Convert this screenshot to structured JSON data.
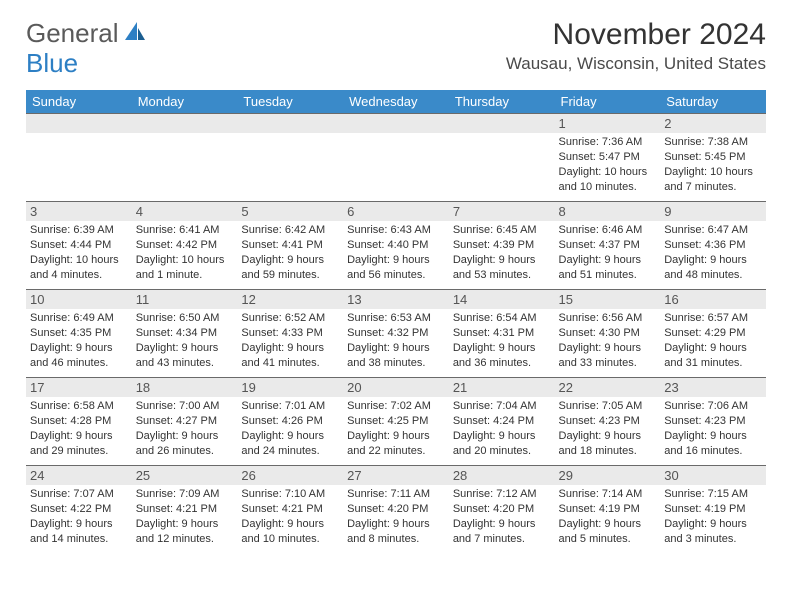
{
  "logo": {
    "word1": "General",
    "word2": "Blue"
  },
  "title": "November 2024",
  "location": "Wausau, Wisconsin, United States",
  "colors": {
    "header_bg": "#3a8ac9",
    "header_text": "#ffffff",
    "daynum_bg": "#eaeaea",
    "border": "#6a6a6a",
    "text": "#333333",
    "logo_gray": "#5a5a5a",
    "logo_blue": "#2d7fc4"
  },
  "day_headers": [
    "Sunday",
    "Monday",
    "Tuesday",
    "Wednesday",
    "Thursday",
    "Friday",
    "Saturday"
  ],
  "weeks": [
    [
      null,
      null,
      null,
      null,
      null,
      {
        "n": "1",
        "sunrise": "Sunrise: 7:36 AM",
        "sunset": "Sunset: 5:47 PM",
        "daylight": "Daylight: 10 hours and 10 minutes."
      },
      {
        "n": "2",
        "sunrise": "Sunrise: 7:38 AM",
        "sunset": "Sunset: 5:45 PM",
        "daylight": "Daylight: 10 hours and 7 minutes."
      }
    ],
    [
      {
        "n": "3",
        "sunrise": "Sunrise: 6:39 AM",
        "sunset": "Sunset: 4:44 PM",
        "daylight": "Daylight: 10 hours and 4 minutes."
      },
      {
        "n": "4",
        "sunrise": "Sunrise: 6:41 AM",
        "sunset": "Sunset: 4:42 PM",
        "daylight": "Daylight: 10 hours and 1 minute."
      },
      {
        "n": "5",
        "sunrise": "Sunrise: 6:42 AM",
        "sunset": "Sunset: 4:41 PM",
        "daylight": "Daylight: 9 hours and 59 minutes."
      },
      {
        "n": "6",
        "sunrise": "Sunrise: 6:43 AM",
        "sunset": "Sunset: 4:40 PM",
        "daylight": "Daylight: 9 hours and 56 minutes."
      },
      {
        "n": "7",
        "sunrise": "Sunrise: 6:45 AM",
        "sunset": "Sunset: 4:39 PM",
        "daylight": "Daylight: 9 hours and 53 minutes."
      },
      {
        "n": "8",
        "sunrise": "Sunrise: 6:46 AM",
        "sunset": "Sunset: 4:37 PM",
        "daylight": "Daylight: 9 hours and 51 minutes."
      },
      {
        "n": "9",
        "sunrise": "Sunrise: 6:47 AM",
        "sunset": "Sunset: 4:36 PM",
        "daylight": "Daylight: 9 hours and 48 minutes."
      }
    ],
    [
      {
        "n": "10",
        "sunrise": "Sunrise: 6:49 AM",
        "sunset": "Sunset: 4:35 PM",
        "daylight": "Daylight: 9 hours and 46 minutes."
      },
      {
        "n": "11",
        "sunrise": "Sunrise: 6:50 AM",
        "sunset": "Sunset: 4:34 PM",
        "daylight": "Daylight: 9 hours and 43 minutes."
      },
      {
        "n": "12",
        "sunrise": "Sunrise: 6:52 AM",
        "sunset": "Sunset: 4:33 PM",
        "daylight": "Daylight: 9 hours and 41 minutes."
      },
      {
        "n": "13",
        "sunrise": "Sunrise: 6:53 AM",
        "sunset": "Sunset: 4:32 PM",
        "daylight": "Daylight: 9 hours and 38 minutes."
      },
      {
        "n": "14",
        "sunrise": "Sunrise: 6:54 AM",
        "sunset": "Sunset: 4:31 PM",
        "daylight": "Daylight: 9 hours and 36 minutes."
      },
      {
        "n": "15",
        "sunrise": "Sunrise: 6:56 AM",
        "sunset": "Sunset: 4:30 PM",
        "daylight": "Daylight: 9 hours and 33 minutes."
      },
      {
        "n": "16",
        "sunrise": "Sunrise: 6:57 AM",
        "sunset": "Sunset: 4:29 PM",
        "daylight": "Daylight: 9 hours and 31 minutes."
      }
    ],
    [
      {
        "n": "17",
        "sunrise": "Sunrise: 6:58 AM",
        "sunset": "Sunset: 4:28 PM",
        "daylight": "Daylight: 9 hours and 29 minutes."
      },
      {
        "n": "18",
        "sunrise": "Sunrise: 7:00 AM",
        "sunset": "Sunset: 4:27 PM",
        "daylight": "Daylight: 9 hours and 26 minutes."
      },
      {
        "n": "19",
        "sunrise": "Sunrise: 7:01 AM",
        "sunset": "Sunset: 4:26 PM",
        "daylight": "Daylight: 9 hours and 24 minutes."
      },
      {
        "n": "20",
        "sunrise": "Sunrise: 7:02 AM",
        "sunset": "Sunset: 4:25 PM",
        "daylight": "Daylight: 9 hours and 22 minutes."
      },
      {
        "n": "21",
        "sunrise": "Sunrise: 7:04 AM",
        "sunset": "Sunset: 4:24 PM",
        "daylight": "Daylight: 9 hours and 20 minutes."
      },
      {
        "n": "22",
        "sunrise": "Sunrise: 7:05 AM",
        "sunset": "Sunset: 4:23 PM",
        "daylight": "Daylight: 9 hours and 18 minutes."
      },
      {
        "n": "23",
        "sunrise": "Sunrise: 7:06 AM",
        "sunset": "Sunset: 4:23 PM",
        "daylight": "Daylight: 9 hours and 16 minutes."
      }
    ],
    [
      {
        "n": "24",
        "sunrise": "Sunrise: 7:07 AM",
        "sunset": "Sunset: 4:22 PM",
        "daylight": "Daylight: 9 hours and 14 minutes."
      },
      {
        "n": "25",
        "sunrise": "Sunrise: 7:09 AM",
        "sunset": "Sunset: 4:21 PM",
        "daylight": "Daylight: 9 hours and 12 minutes."
      },
      {
        "n": "26",
        "sunrise": "Sunrise: 7:10 AM",
        "sunset": "Sunset: 4:21 PM",
        "daylight": "Daylight: 9 hours and 10 minutes."
      },
      {
        "n": "27",
        "sunrise": "Sunrise: 7:11 AM",
        "sunset": "Sunset: 4:20 PM",
        "daylight": "Daylight: 9 hours and 8 minutes."
      },
      {
        "n": "28",
        "sunrise": "Sunrise: 7:12 AM",
        "sunset": "Sunset: 4:20 PM",
        "daylight": "Daylight: 9 hours and 7 minutes."
      },
      {
        "n": "29",
        "sunrise": "Sunrise: 7:14 AM",
        "sunset": "Sunset: 4:19 PM",
        "daylight": "Daylight: 9 hours and 5 minutes."
      },
      {
        "n": "30",
        "sunrise": "Sunrise: 7:15 AM",
        "sunset": "Sunset: 4:19 PM",
        "daylight": "Daylight: 9 hours and 3 minutes."
      }
    ]
  ]
}
